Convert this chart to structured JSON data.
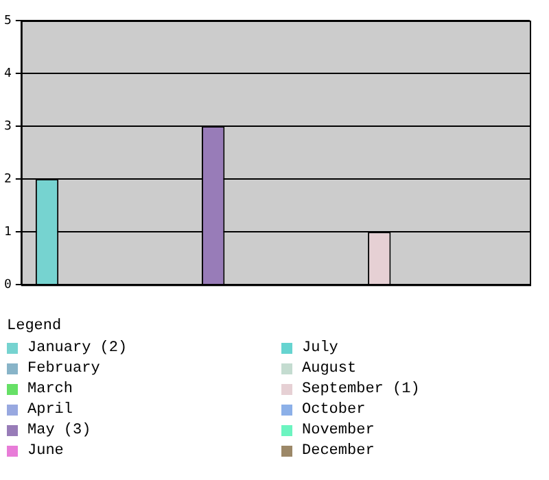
{
  "chart_data": {
    "type": "bar",
    "categories": [
      null
    ],
    "legend_title": "Legend",
    "legend": "bottom",
    "grid": "y",
    "ylim": [
      0,
      5
    ],
    "yticks": [
      0,
      1,
      2,
      3,
      4,
      5
    ],
    "series": [
      {
        "name": "January (2)",
        "color": "#76d3d0",
        "values": [
          2
        ]
      },
      {
        "name": "February",
        "color": "#88b4c8",
        "values": [
          0
        ]
      },
      {
        "name": "March",
        "color": "#66e066",
        "values": [
          0
        ]
      },
      {
        "name": "April",
        "color": "#98a8e0",
        "values": [
          0
        ]
      },
      {
        "name": "May (3)",
        "color": "#987cb8",
        "values": [
          3
        ]
      },
      {
        "name": "June",
        "color": "#e87cd8",
        "values": [
          0
        ]
      },
      {
        "name": "July",
        "color": "#66d4d0",
        "values": [
          0
        ]
      },
      {
        "name": "August",
        "color": "#c4dcd0",
        "values": [
          0
        ]
      },
      {
        "name": "September (1)",
        "color": "#e6d0d4",
        "values": [
          1
        ]
      },
      {
        "name": "October",
        "color": "#8cb0e8",
        "values": [
          0
        ]
      },
      {
        "name": "November",
        "color": "#6cf4c0",
        "values": [
          0
        ]
      },
      {
        "name": "December",
        "color": "#9c8868",
        "values": [
          0
        ]
      }
    ]
  }
}
